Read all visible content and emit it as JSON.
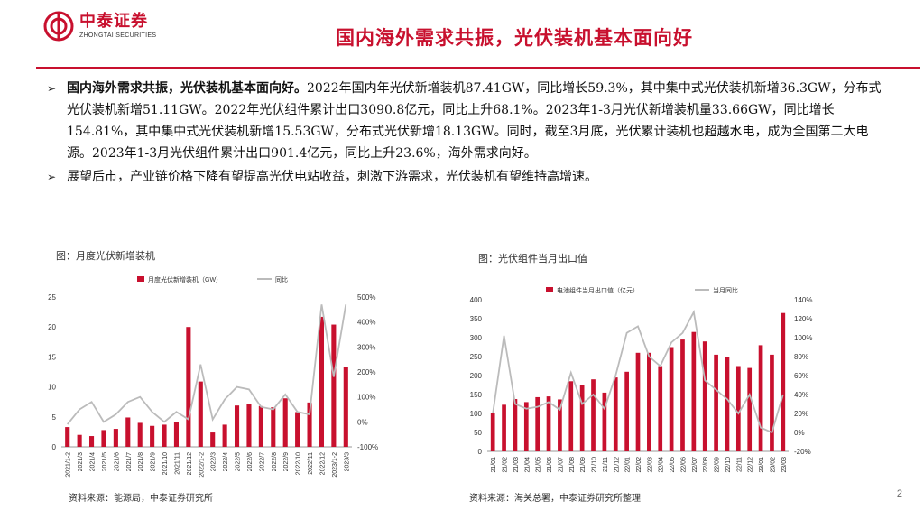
{
  "header": {
    "logo_cn": "中泰证券",
    "logo_en": "ZHONGTAI SECURITIES",
    "title": "国内海外需求共振，光伏装机基本面向好",
    "brand_color": "#c8102e"
  },
  "bullets": [
    {
      "bold": "国内海外需求共振，光伏装机基本面向好。",
      "text": "2022年国内年光伏新增装机87.41GW，同比增长59.3%，其中集中式光伏装机新增36.3GW，分布式光伏装机新增51.11GW。2022年光伏组件累计出口3090.8亿元，同比上升68.1%。2023年1-3月光伏新增装机量33.66GW，同比增长154.81%，其中集中式光伏装机新增15.53GW，分布式光伏新增18.13GW。同时，截至3月底，光伏累计装机也超越水电，成为全国第二大电源。2023年1-3月光伏组件累计出口901.4亿元，同比上升23.6%，海外需求向好。"
    },
    {
      "bold": "",
      "text": "展望后市，产业链价格下降有望提高光伏电站收益，刺激下游需求，光伏装机有望维持高增速。"
    }
  ],
  "chart_data": [
    {
      "type": "bar",
      "title": "图：月度光伏新增装机",
      "categories": [
        "2021/1-2",
        "2021/3",
        "2021/4",
        "2021/5",
        "2021/6",
        "2021/7",
        "2021/8",
        "2021/9",
        "2021/10",
        "2021/11",
        "2021/12",
        "2022/1-2",
        "2022/3",
        "2022/4",
        "2022/5",
        "2022/6",
        "2022/7",
        "2022/8",
        "2022/9",
        "2022/10",
        "2022/11",
        "2022/12",
        "2023/1-2",
        "2023/3"
      ],
      "series": [
        {
          "name": "月度光伏新增装机（GW）",
          "kind": "bar",
          "axis": "left",
          "color": "#c8102e",
          "values": [
            3.3,
            2.0,
            1.8,
            2.8,
            3.0,
            4.9,
            4.0,
            3.5,
            3.7,
            4.2,
            20.0,
            10.9,
            2.4,
            3.7,
            6.9,
            7.1,
            6.8,
            6.6,
            8.1,
            5.8,
            7.4,
            21.7,
            20.4,
            13.3
          ]
        },
        {
          "name": "同比",
          "kind": "line",
          "axis": "right",
          "color": "#bbbbbb",
          "values": [
            -10,
            50,
            80,
            0,
            30,
            80,
            100,
            40,
            0,
            40,
            10,
            230,
            10,
            90,
            140,
            130,
            60,
            50,
            110,
            40,
            30,
            470,
            180,
            470
          ]
        }
      ],
      "ylim_left": [
        0,
        25
      ],
      "yticks_left": [
        0,
        5,
        10,
        15,
        20,
        25
      ],
      "ylim_right": [
        -100,
        500
      ],
      "yticks_right": [
        "-100%",
        "0%",
        "100%",
        "200%",
        "300%",
        "400%",
        "500%"
      ],
      "ytick_values_right": [
        -100,
        0,
        100,
        200,
        300,
        400,
        500
      ],
      "source": "资料来源：能源局，中泰证券研究所"
    },
    {
      "type": "bar",
      "title": "图：光伏组件当月出口值",
      "categories": [
        "21/01",
        "21/02",
        "21/03",
        "21/04",
        "21/05",
        "21/06",
        "21/07",
        "21/08",
        "21/09",
        "21/10",
        "21/11",
        "21/12",
        "22/01",
        "22/02",
        "22/03",
        "22/04",
        "22/05",
        "22/06",
        "22/07",
        "22/08",
        "22/09",
        "22/10",
        "22/11",
        "22/12",
        "23/01",
        "23/02",
        "23/03"
      ],
      "series": [
        {
          "name": "电池组件当月出口值（亿元）",
          "kind": "bar",
          "axis": "left",
          "color": "#c8102e",
          "values": [
            100,
            123,
            138,
            130,
            143,
            145,
            137,
            185,
            175,
            190,
            155,
            195,
            210,
            260,
            260,
            225,
            275,
            295,
            315,
            290,
            255,
            250,
            225,
            220,
            280,
            255,
            365
          ]
        },
        {
          "name": "当月同比",
          "kind": "line",
          "axis": "right",
          "color": "#bbbbbb",
          "values": [
            20,
            102,
            30,
            25,
            27,
            32,
            24,
            63,
            30,
            40,
            25,
            60,
            105,
            112,
            80,
            70,
            95,
            105,
            127,
            55,
            45,
            35,
            20,
            40,
            5,
            0,
            40
          ]
        }
      ],
      "ylim_left": [
        0,
        400
      ],
      "yticks_left": [
        0,
        50,
        100,
        150,
        200,
        250,
        300,
        350,
        400
      ],
      "ylim_right": [
        -20,
        140
      ],
      "yticks_right": [
        "-20%",
        "0%",
        "20%",
        "40%",
        "60%",
        "80%",
        "100%",
        "120%",
        "140%"
      ],
      "ytick_values_right": [
        -20,
        0,
        20,
        40,
        60,
        80,
        100,
        120,
        140
      ],
      "source": "资料来源：海关总署，中泰证券研究所整理"
    }
  ],
  "footer": {
    "page_number": "2"
  }
}
